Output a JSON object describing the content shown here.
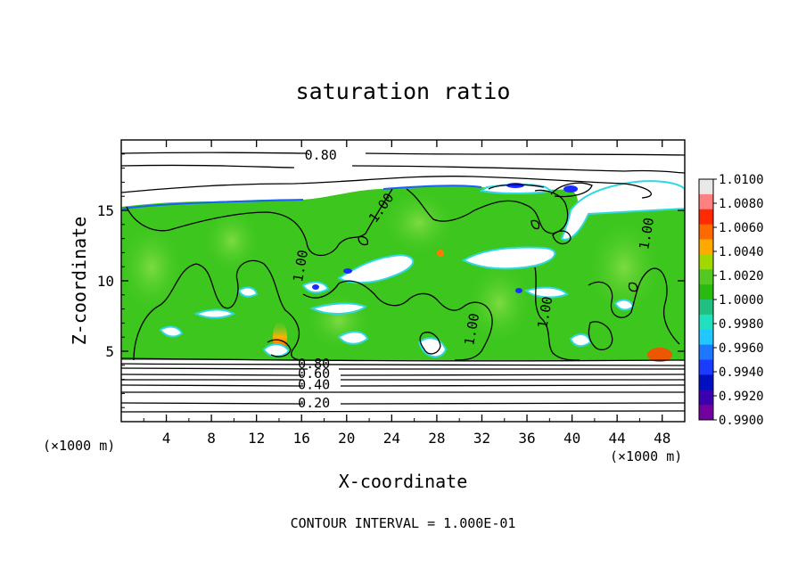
{
  "chart_data": {
    "type": "heatmap",
    "title": "saturation ratio",
    "xlabel": "X-coordinate",
    "ylabel": "Z-coordinate",
    "x_unit_label": "(×1000 m)",
    "x_unit_label_right": "(×1000 m)",
    "xlim": [
      0,
      50
    ],
    "ylim": [
      0,
      20
    ],
    "x_ticks": [
      4,
      8,
      12,
      16,
      20,
      24,
      28,
      32,
      36,
      40,
      44,
      48
    ],
    "y_ticks": [
      5,
      10,
      15
    ],
    "footer": "CONTOUR INTERVAL = 1.000E-01",
    "contour_labels": [
      {
        "text": "0.80",
        "x": 17.7,
        "z": 18.6
      },
      {
        "text": "1.00",
        "x": 23.4,
        "z": 15.0
      },
      {
        "text": "1.00",
        "x": 16.3,
        "z": 11.0
      },
      {
        "text": "1.00",
        "x": 47.0,
        "z": 13.3
      },
      {
        "text": "1.00",
        "x": 38.0,
        "z": 7.7
      },
      {
        "text": "1.00",
        "x": 31.5,
        "z": 6.5
      },
      {
        "text": "0.80",
        "x": 17.1,
        "z": 3.8
      },
      {
        "text": "0.60",
        "x": 17.1,
        "z": 3.1
      },
      {
        "text": "0.40",
        "x": 17.1,
        "z": 2.3
      },
      {
        "text": "0.20",
        "x": 17.1,
        "z": 1.0
      }
    ],
    "colorbar": {
      "labels": [
        "1.0100",
        "1.0080",
        "1.0060",
        "1.0040",
        "1.0020",
        "1.0000",
        "0.9980",
        "0.9960",
        "0.9940",
        "0.9920",
        "0.9900"
      ],
      "colors": [
        "#e8e8e8",
        "#ff8080",
        "#ff2a00",
        "#ff6a00",
        "#ffaa00",
        "#a0d800",
        "#52c820",
        "#2abb10",
        "#20c080",
        "#20e0c0",
        "#20c8ff",
        "#1e78ff",
        "#1a3cff",
        "#0010c0",
        "#3a00b0",
        "#7000a0"
      ]
    },
    "colors": {
      "supersaturated": "#3cc61e",
      "supersaturated_light": "#6fd838",
      "edge_cyan": "#30e0d0",
      "edge_blue": "#1a60ff"
    }
  }
}
